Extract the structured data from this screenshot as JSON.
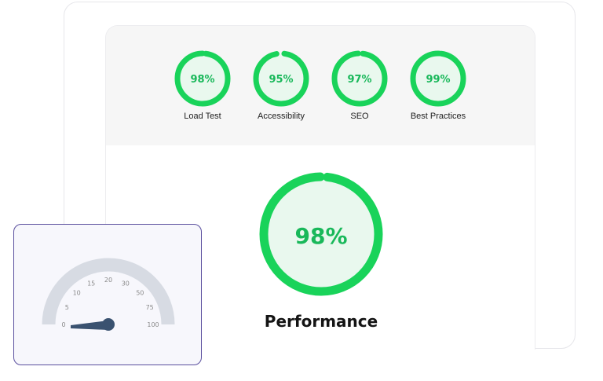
{
  "scores": [
    {
      "id": "load-test",
      "label": "Load Test",
      "value": 98,
      "display": "98%"
    },
    {
      "id": "accessibility",
      "label": "Accessibility",
      "value": 95,
      "display": "95%"
    },
    {
      "id": "seo",
      "label": "SEO",
      "value": 97,
      "display": "97%"
    },
    {
      "id": "best-practices",
      "label": "Best Practices",
      "value": 99,
      "display": "99%"
    }
  ],
  "performance": {
    "label": "Performance",
    "value": 98,
    "display": "98%"
  },
  "gauge": {
    "ticks": [
      "0",
      "5",
      "10",
      "15",
      "20",
      "30",
      "50",
      "75",
      "100"
    ],
    "value": 0
  },
  "colors": {
    "ring_green": "#19d35a",
    "ring_fill": "#e9f8ee",
    "ring_text": "#19b85a",
    "gauge_track": "#d7dbe3",
    "needle": "#3a5270",
    "card_border": "#5a4f9e"
  }
}
